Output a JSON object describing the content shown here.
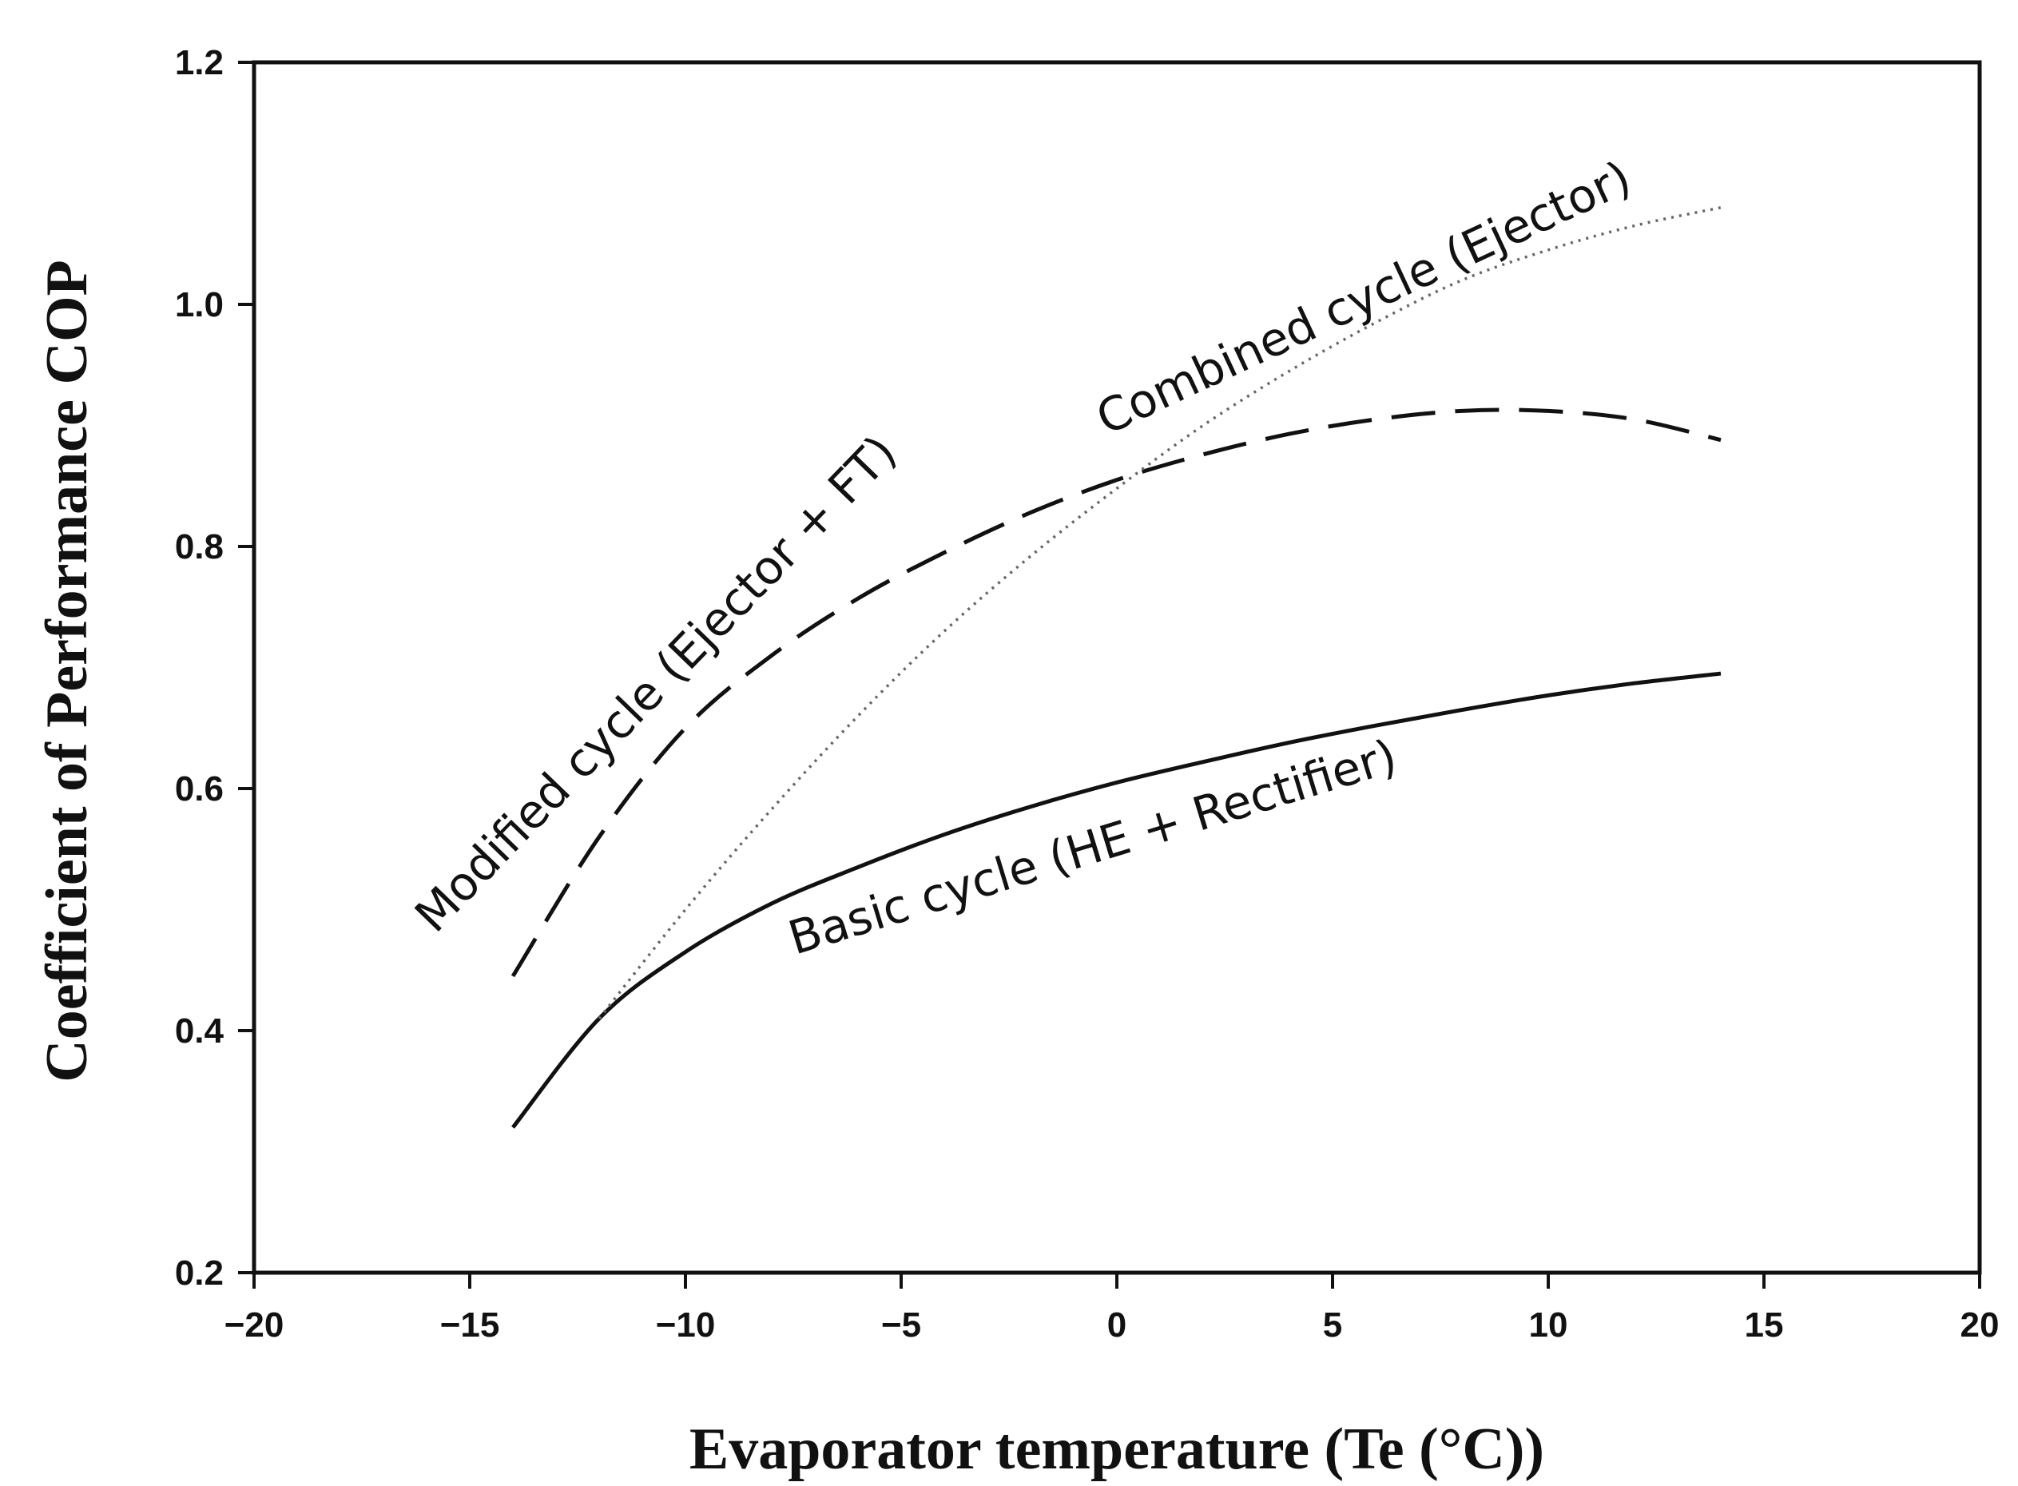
{
  "chart_data": {
    "type": "line",
    "title": "",
    "xlabel": "Evaporator temperature (Te (°C))",
    "ylabel": "Coefficient of Performance COP",
    "xlim": [
      -20,
      20
    ],
    "ylim": [
      0.2,
      1.2
    ],
    "x_ticks": [
      -20,
      -15,
      -10,
      -5,
      0,
      5,
      10,
      15,
      20
    ],
    "x_tick_labels": [
      "−20",
      "−15",
      "−10",
      "−5",
      "0",
      "5",
      "10",
      "15",
      "20"
    ],
    "y_ticks": [
      0.2,
      0.4,
      0.6,
      0.8,
      1.0,
      1.2
    ],
    "y_tick_labels": [
      "0.2",
      "0.4",
      "0.6",
      "0.8",
      "1.0",
      "1.2"
    ],
    "grid": false,
    "legend": "none (curves labelled inline)",
    "series": [
      {
        "name": "Basic cycle (HE + Rectifier)",
        "style": "solid",
        "x": [
          -14,
          -12,
          -10,
          -8,
          -6,
          -4,
          -2,
          0,
          2,
          4,
          6,
          8,
          10,
          12,
          14
        ],
        "y": [
          0.32,
          0.41,
          0.465,
          0.505,
          0.535,
          0.562,
          0.585,
          0.605,
          0.622,
          0.638,
          0.652,
          0.665,
          0.677,
          0.687,
          0.695
        ]
      },
      {
        "name": "Modified cycle (Ejector + FT)",
        "style": "dashed",
        "x": [
          -14,
          -12,
          -10,
          -8,
          -6,
          -4,
          -2,
          0,
          2,
          4,
          6,
          8,
          10,
          12,
          14
        ],
        "y": [
          0.445,
          0.56,
          0.65,
          0.71,
          0.757,
          0.795,
          0.828,
          0.855,
          0.876,
          0.893,
          0.905,
          0.912,
          0.912,
          0.905,
          0.888
        ]
      },
      {
        "name": "Combined cycle (Ejector)",
        "style": "dotted",
        "x": [
          -12,
          -10,
          -8,
          -6,
          -4,
          -2,
          0,
          2,
          4,
          6,
          8,
          10,
          12,
          14
        ],
        "y": [
          0.41,
          0.5,
          0.583,
          0.66,
          0.73,
          0.792,
          0.848,
          0.9,
          0.945,
          0.985,
          1.02,
          1.045,
          1.065,
          1.08
        ]
      }
    ],
    "annotations": [
      {
        "text": "Modified cycle (Ejector + FT)",
        "series": 1
      },
      {
        "text": "Combined cycle (Ejector)",
        "series": 2
      },
      {
        "text": "Basic cycle (HE + Rectifier)",
        "series": 0
      }
    ]
  }
}
